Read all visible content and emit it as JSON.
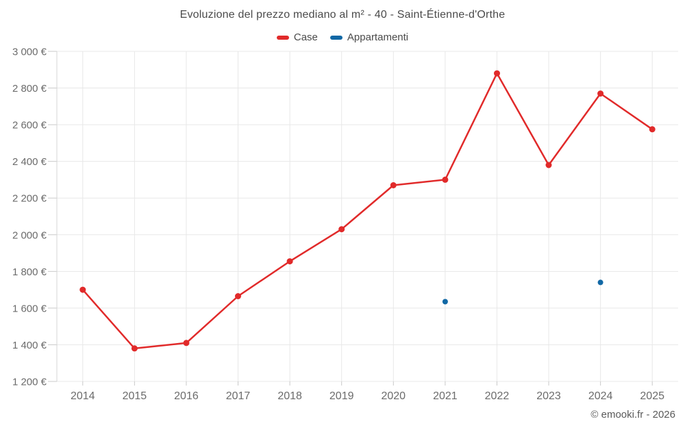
{
  "page": {
    "footer_credit": "© emooki.fr - 2026"
  },
  "chart_data": {
    "type": "line",
    "title": "Evoluzione del prezzo mediano al m² - 40 - Saint-Étienne-d'Orthe",
    "categories": [
      "2014",
      "2015",
      "2016",
      "2017",
      "2018",
      "2019",
      "2020",
      "2021",
      "2022",
      "2023",
      "2024",
      "2025"
    ],
    "series": [
      {
        "name": "Case",
        "type": "line",
        "color": "#e12a2a",
        "values": [
          1700,
          1380,
          1410,
          1665,
          1855,
          2030,
          2270,
          2300,
          2880,
          2380,
          2770,
          2575
        ]
      },
      {
        "name": "Appartamenti",
        "type": "scatter",
        "color": "#1168a5",
        "values": [
          null,
          null,
          null,
          null,
          null,
          null,
          null,
          1635,
          null,
          null,
          1740,
          null
        ]
      }
    ],
    "xlabel": "",
    "ylabel": "",
    "ylim": [
      1200,
      3000
    ],
    "ytick_step": 200,
    "y_suffix": " €",
    "grid": true,
    "legend_position": "top",
    "grid_color": "#e8e8e8",
    "axis_color": "#d6d6d6",
    "tick_color": "#c9c9c9"
  }
}
